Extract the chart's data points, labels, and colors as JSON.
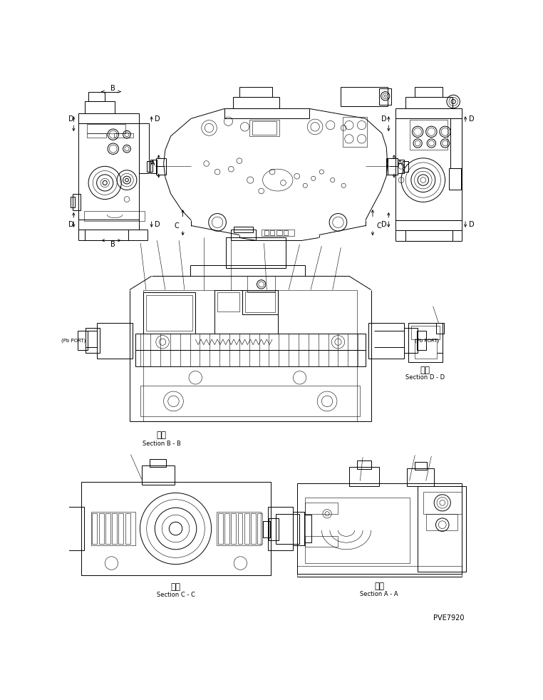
{
  "bg_color": "#ffffff",
  "line_color": "#000000",
  "lw": 0.7,
  "tlw": 0.4,
  "fig_width": 7.62,
  "fig_height": 9.82,
  "labels": {
    "section_bb_kanji": "断面",
    "section_bb": "Section B - B",
    "section_dd_kanji": "断面",
    "section_dd": "Section D - D",
    "section_cc_kanji": "断面",
    "section_cc": "Section C - C",
    "section_aa_kanji": "断面",
    "section_aa": "Section A - A",
    "pb_port_left": "(Pb PORT)",
    "pb_port_right": "(Pb PORT)",
    "part_number": "PVE7920",
    "A": "A",
    "B": "B",
    "C": "C",
    "D": "D"
  },
  "fs": 7.0,
  "fs_sm": 6.0,
  "fs_kanji": 8.5
}
